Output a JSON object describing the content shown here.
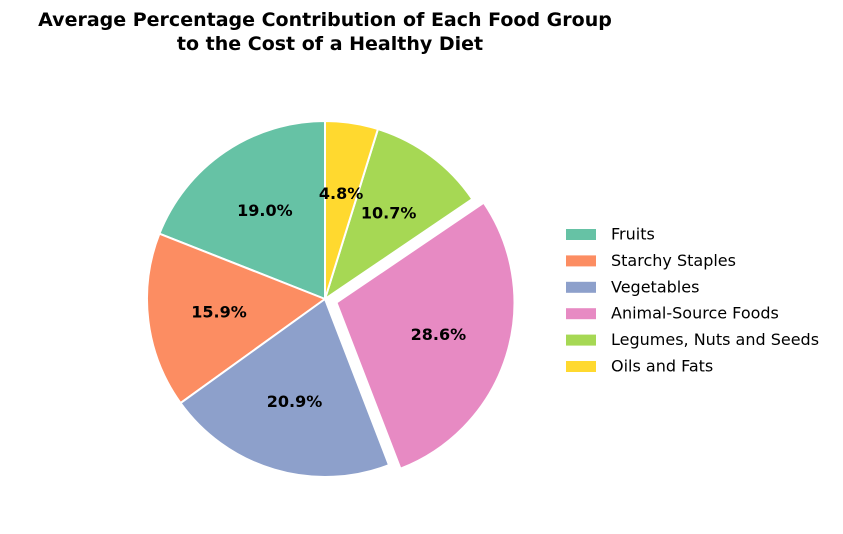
{
  "chart_data": {
    "type": "pie",
    "title_lines": [
      "Average Percentage Contribution of Each Food Group",
      "to the Cost of a Healthy Diet"
    ],
    "slices": [
      {
        "name": "Fruits",
        "value": 19.0,
        "label": "19.0%",
        "color": "#66c2a5",
        "exploded": false
      },
      {
        "name": "Starchy Staples",
        "value": 15.9,
        "label": "15.9%",
        "color": "#fc8d62",
        "exploded": false
      },
      {
        "name": "Vegetables",
        "value": 20.9,
        "label": "20.9%",
        "color": "#8da0cb",
        "exploded": false
      },
      {
        "name": "Animal-Source Foods",
        "value": 28.6,
        "label": "28.6%",
        "color": "#e78ac3",
        "exploded": true
      },
      {
        "name": "Legumes, Nuts and Seeds",
        "value": 10.7,
        "label": "10.7%",
        "color": "#a6d854",
        "exploded": false
      },
      {
        "name": "Oils and Fats",
        "value": 4.8,
        "label": "4.8%",
        "color": "#ffd92f",
        "exploded": false
      }
    ],
    "start_angle": "top (12 o'clock)",
    "direction": "counterclockwise",
    "legend_position": "right"
  }
}
